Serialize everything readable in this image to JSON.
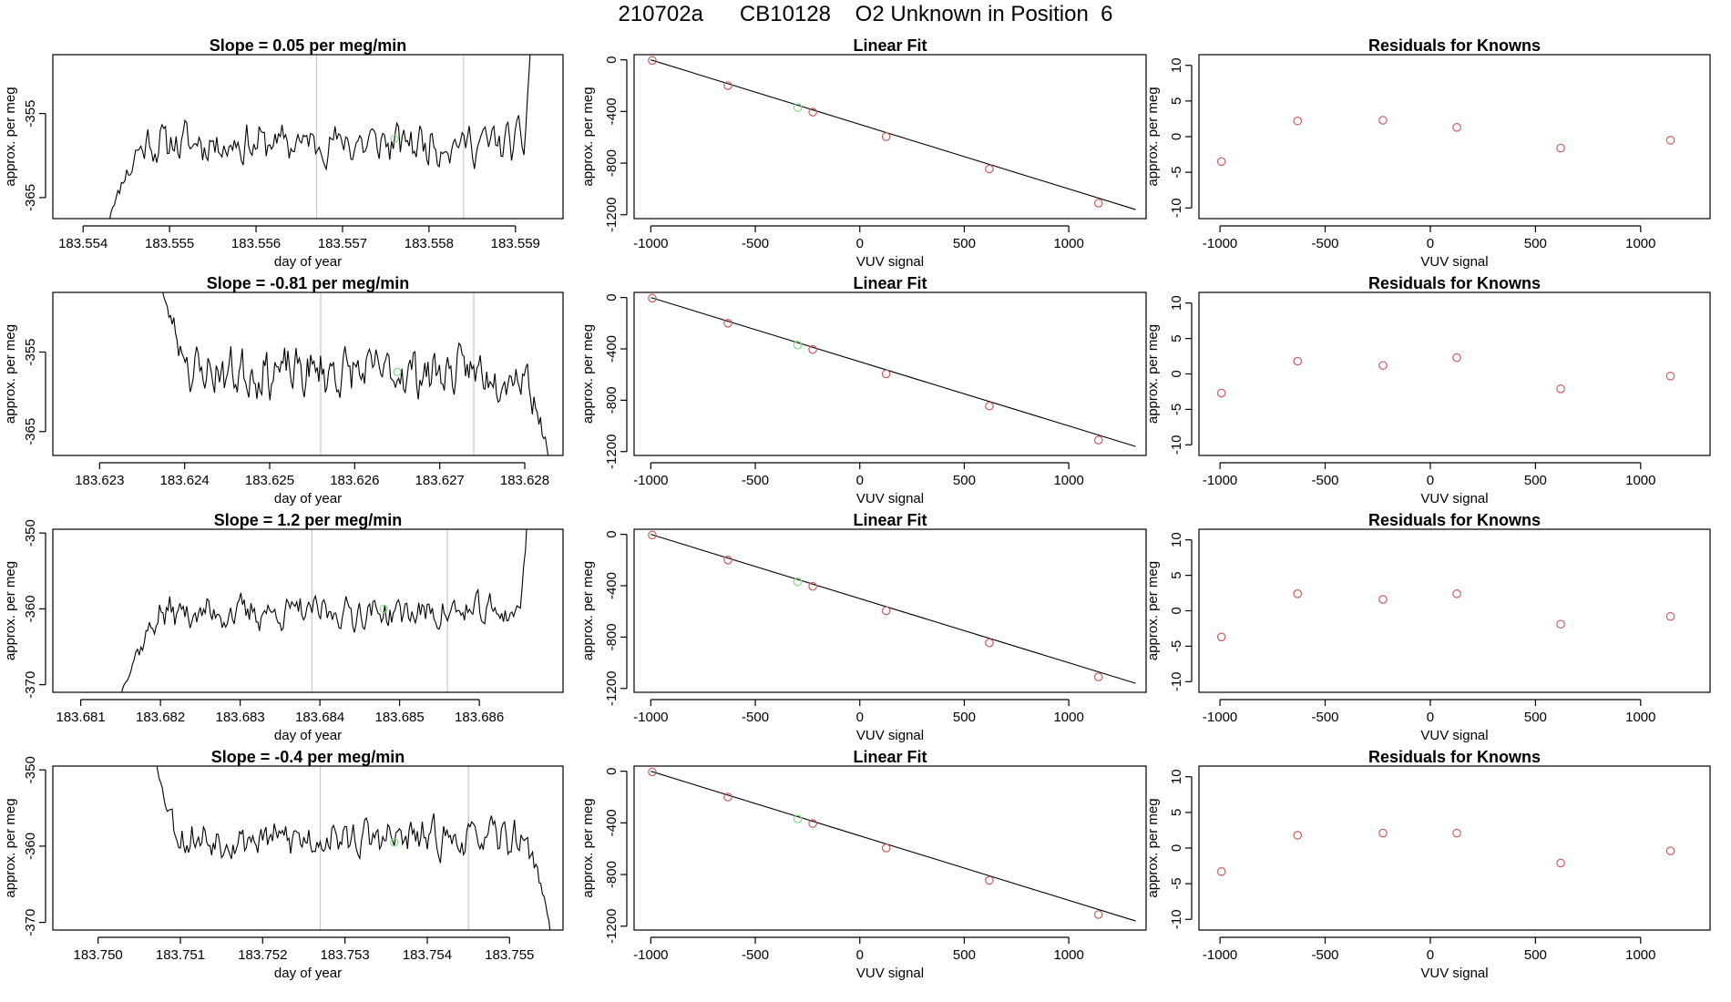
{
  "figure": {
    "title": "210702a      CB10128    O2 Unknown in Position  6"
  },
  "colors": {
    "line": "#000000",
    "marker": "#cd5c5c",
    "unknown_marker": "#7fe07f",
    "vline": "#c8c8c8"
  },
  "chart_data": [
    {
      "type": "line",
      "row": 0,
      "col": 0,
      "title": "Slope =  0.05  per meg/min",
      "xlabel": "day of year",
      "ylabel": "approx. per meg",
      "xlim": [
        183.55365,
        183.55955
      ],
      "ylim": [
        -367.5,
        -348
      ],
      "xticks": [
        183.554,
        183.555,
        183.556,
        183.557,
        183.558,
        183.559
      ],
      "xtick_labels": [
        "183.554",
        "183.555",
        "183.556",
        "183.557",
        "183.558",
        "183.559"
      ],
      "yticks": [
        -365,
        -355
      ],
      "ytick_labels": [
        "-365",
        "-355"
      ],
      "vlines": [
        183.5567,
        183.5584
      ],
      "trace": {
        "x_start": 183.5543,
        "x_end": 183.5592,
        "base": -358.5,
        "amp": 2.0,
        "seed": 11,
        "head_start": -368,
        "tail_end": -340,
        "head_len": 0.0004,
        "tail_len": 0.0001
      },
      "highlight": {
        "x": 183.5576,
        "y": -358
      }
    },
    {
      "type": "scatter",
      "row": 0,
      "col": 1,
      "title": "Linear Fit",
      "xlabel": "VUV signal",
      "ylabel": "approx. per meg",
      "xlim": [
        -1080,
        1370
      ],
      "ylim": [
        -1230,
        40
      ],
      "xticks": [
        -1000,
        -500,
        0,
        500,
        1000
      ],
      "xtick_labels": [
        "-1000",
        "-500",
        "0",
        "500",
        "1000"
      ],
      "yticks": [
        -1200,
        -800,
        -400,
        0
      ],
      "ytick_labels": [
        "-1200",
        "-800",
        "-400",
        "0"
      ],
      "fit_line": {
        "x": [
          -1000,
          1320
        ],
        "y": [
          0,
          -1160
        ]
      },
      "points": {
        "x": [
          -993,
          -631,
          -225,
          126,
          620,
          1142
        ],
        "y": [
          -5,
          -200,
          -405,
          -595,
          -845,
          -1110
        ]
      },
      "unknown": {
        "x": [
          -297
        ],
        "y": [
          -370
        ]
      }
    },
    {
      "type": "scatter",
      "row": 0,
      "col": 2,
      "title": "Residuals for Knowns",
      "xlabel": "VUV signal",
      "ylabel": "approx. per meg",
      "xlim": [
        -1100,
        1330
      ],
      "ylim": [
        -11.5,
        11.5
      ],
      "xticks": [
        -1000,
        -500,
        0,
        500,
        1000
      ],
      "xtick_labels": [
        "-1000",
        "-500",
        "0",
        "500",
        "1000"
      ],
      "yticks": [
        -10,
        -5,
        0,
        5,
        10
      ],
      "ytick_labels": [
        "-10",
        "-5",
        "0",
        "5",
        "10"
      ],
      "points": {
        "x": [
          -993,
          -631,
          -225,
          126,
          620,
          1142
        ],
        "y": [
          -3.5,
          2.2,
          2.3,
          1.3,
          -1.6,
          -0.5
        ]
      }
    },
    {
      "type": "line",
      "row": 1,
      "col": 0,
      "title": "Slope =  -0.81  per meg/min",
      "xlabel": "day of year",
      "ylabel": "approx. per meg",
      "xlim": [
        183.62245,
        183.62845
      ],
      "ylim": [
        -368,
        -347.5
      ],
      "xticks": [
        183.623,
        183.624,
        183.625,
        183.626,
        183.627,
        183.628
      ],
      "xtick_labels": [
        "183.623",
        "183.624",
        "183.625",
        "183.626",
        "183.627",
        "183.628"
      ],
      "yticks": [
        -365,
        -355
      ],
      "ytick_labels": [
        "-365",
        "-355"
      ],
      "vlines": [
        183.6256,
        183.6274
      ],
      "trace": {
        "x_start": 183.6237,
        "x_end": 183.6283,
        "base": -357.5,
        "amp": 2.6,
        "seed": 23,
        "head_start": -345,
        "tail_end": -370,
        "head_len": 0.0004,
        "tail_len": 0.0003
      },
      "highlight": {
        "x": 183.6265,
        "y": -357.5
      }
    },
    {
      "type": "scatter",
      "row": 1,
      "col": 1,
      "title": "Linear Fit",
      "xlabel": "VUV signal",
      "ylabel": "approx. per meg",
      "xlim": [
        -1080,
        1370
      ],
      "ylim": [
        -1230,
        40
      ],
      "xticks": [
        -1000,
        -500,
        0,
        500,
        1000
      ],
      "xtick_labels": [
        "-1000",
        "-500",
        "0",
        "500",
        "1000"
      ],
      "yticks": [
        -1200,
        -800,
        -400,
        0
      ],
      "ytick_labels": [
        "-1200",
        "-800",
        "-400",
        "0"
      ],
      "fit_line": {
        "x": [
          -1000,
          1320
        ],
        "y": [
          0,
          -1160
        ]
      },
      "points": {
        "x": [
          -993,
          -631,
          -225,
          126,
          620,
          1142
        ],
        "y": [
          -5,
          -200,
          -405,
          -595,
          -845,
          -1110
        ]
      },
      "unknown": {
        "x": [
          -297
        ],
        "y": [
          -370
        ]
      }
    },
    {
      "type": "scatter",
      "row": 1,
      "col": 2,
      "title": "Residuals for Knowns",
      "xlabel": "VUV signal",
      "ylabel": "approx. per meg",
      "xlim": [
        -1100,
        1330
      ],
      "ylim": [
        -11.5,
        11.5
      ],
      "xticks": [
        -1000,
        -500,
        0,
        500,
        1000
      ],
      "xtick_labels": [
        "-1000",
        "-500",
        "0",
        "500",
        "1000"
      ],
      "yticks": [
        -10,
        -5,
        0,
        5,
        10
      ],
      "ytick_labels": [
        "-10",
        "-5",
        "0",
        "5",
        "10"
      ],
      "points": {
        "x": [
          -993,
          -631,
          -225,
          126,
          620,
          1142
        ],
        "y": [
          -2.7,
          1.8,
          1.2,
          2.3,
          -2.1,
          -0.3
        ]
      }
    },
    {
      "type": "line",
      "row": 2,
      "col": 0,
      "title": "Slope =  1.2  per meg/min",
      "xlabel": "day of year",
      "ylabel": "approx. per meg",
      "xlim": [
        183.68065,
        183.68705
      ],
      "ylim": [
        -371,
        -349.5
      ],
      "xticks": [
        183.681,
        183.682,
        183.683,
        183.684,
        183.685,
        183.686
      ],
      "xtick_labels": [
        "183.681",
        "183.682",
        "183.683",
        "183.684",
        "183.685",
        "183.686"
      ],
      "yticks": [
        -370,
        -360,
        -350
      ],
      "ytick_labels": [
        "-370",
        "-360",
        "-350"
      ],
      "vlines": [
        183.6839,
        183.6856
      ],
      "trace": {
        "x_start": 183.6815,
        "x_end": 183.6866,
        "base": -360.5,
        "amp": 1.8,
        "seed": 37,
        "head_start": -372,
        "tail_end": -348,
        "head_len": 0.0005,
        "tail_len": 0.0001
      },
      "highlight": {
        "x": 183.6848,
        "y": -360
      }
    },
    {
      "type": "scatter",
      "row": 2,
      "col": 1,
      "title": "Linear Fit",
      "xlabel": "VUV signal",
      "ylabel": "approx. per meg",
      "xlim": [
        -1080,
        1370
      ],
      "ylim": [
        -1230,
        40
      ],
      "xticks": [
        -1000,
        -500,
        0,
        500,
        1000
      ],
      "xtick_labels": [
        "-1000",
        "-500",
        "0",
        "500",
        "1000"
      ],
      "yticks": [
        -1200,
        -800,
        -400,
        0
      ],
      "ytick_labels": [
        "-1200",
        "-800",
        "-400",
        "0"
      ],
      "fit_line": {
        "x": [
          -1000,
          1320
        ],
        "y": [
          0,
          -1160
        ]
      },
      "points": {
        "x": [
          -993,
          -631,
          -225,
          126,
          620,
          1142
        ],
        "y": [
          -5,
          -200,
          -405,
          -595,
          -845,
          -1110
        ]
      },
      "unknown": {
        "x": [
          -297
        ],
        "y": [
          -370
        ]
      }
    },
    {
      "type": "scatter",
      "row": 2,
      "col": 2,
      "title": "Residuals for Knowns",
      "xlabel": "VUV signal",
      "ylabel": "approx. per meg",
      "xlim": [
        -1100,
        1330
      ],
      "ylim": [
        -11.5,
        11.5
      ],
      "xticks": [
        -1000,
        -500,
        0,
        500,
        1000
      ],
      "xtick_labels": [
        "-1000",
        "-500",
        "0",
        "500",
        "1000"
      ],
      "yticks": [
        -10,
        -5,
        0,
        5,
        10
      ],
      "ytick_labels": [
        "-10",
        "-5",
        "0",
        "5",
        "10"
      ],
      "points": {
        "x": [
          -993,
          -631,
          -225,
          126,
          620,
          1142
        ],
        "y": [
          -3.7,
          2.4,
          1.6,
          2.4,
          -1.9,
          -0.8
        ]
      }
    },
    {
      "type": "line",
      "row": 3,
      "col": 0,
      "title": "Slope =  -0.4  per meg/min",
      "xlabel": "day of year",
      "ylabel": "approx. per meg",
      "xlim": [
        183.74945,
        183.75565
      ],
      "ylim": [
        -371,
        -349.5
      ],
      "xticks": [
        183.75,
        183.751,
        183.752,
        183.753,
        183.754,
        183.755
      ],
      "xtick_labels": [
        "183.750",
        "183.751",
        "183.752",
        "183.753",
        "183.754",
        "183.755"
      ],
      "yticks": [
        -370,
        -360,
        -350
      ],
      "ytick_labels": [
        "-370",
        "-360",
        "-350"
      ],
      "vlines": [
        183.7527,
        183.7545
      ],
      "trace": {
        "x_start": 183.7507,
        "x_end": 183.7555,
        "base": -359.0,
        "amp": 2.0,
        "seed": 53,
        "head_start": -348,
        "tail_end": -372,
        "head_len": 0.0003,
        "tail_len": 0.0003
      },
      "highlight": {
        "x": 183.7536,
        "y": -359.5
      }
    },
    {
      "type": "scatter",
      "row": 3,
      "col": 1,
      "title": "Linear Fit",
      "xlabel": "VUV signal",
      "ylabel": "approx. per meg",
      "xlim": [
        -1080,
        1370
      ],
      "ylim": [
        -1230,
        40
      ],
      "xticks": [
        -1000,
        -500,
        0,
        500,
        1000
      ],
      "xtick_labels": [
        "-1000",
        "-500",
        "0",
        "500",
        "1000"
      ],
      "yticks": [
        -1200,
        -800,
        -400,
        0
      ],
      "ytick_labels": [
        "-1200",
        "-800",
        "-400",
        "0"
      ],
      "fit_line": {
        "x": [
          -1000,
          1320
        ],
        "y": [
          0,
          -1160
        ]
      },
      "points": {
        "x": [
          -993,
          -631,
          -225,
          126,
          620,
          1142
        ],
        "y": [
          -5,
          -200,
          -405,
          -595,
          -845,
          -1110
        ]
      },
      "unknown": {
        "x": [
          -297
        ],
        "y": [
          -370
        ]
      }
    },
    {
      "type": "scatter",
      "row": 3,
      "col": 2,
      "title": "Residuals for Knowns",
      "xlabel": "VUV signal",
      "ylabel": "approx. per meg",
      "xlim": [
        -1100,
        1330
      ],
      "ylim": [
        -11.5,
        11.5
      ],
      "xticks": [
        -1000,
        -500,
        0,
        500,
        1000
      ],
      "xtick_labels": [
        "-1000",
        "-500",
        "0",
        "500",
        "1000"
      ],
      "yticks": [
        -10,
        -5,
        0,
        5,
        10
      ],
      "ytick_labels": [
        "-10",
        "-5",
        "0",
        "5",
        "10"
      ],
      "points": {
        "x": [
          -993,
          -631,
          -225,
          126,
          620,
          1142
        ],
        "y": [
          -3.3,
          1.8,
          2.1,
          2.1,
          -2.1,
          -0.4
        ]
      }
    }
  ]
}
